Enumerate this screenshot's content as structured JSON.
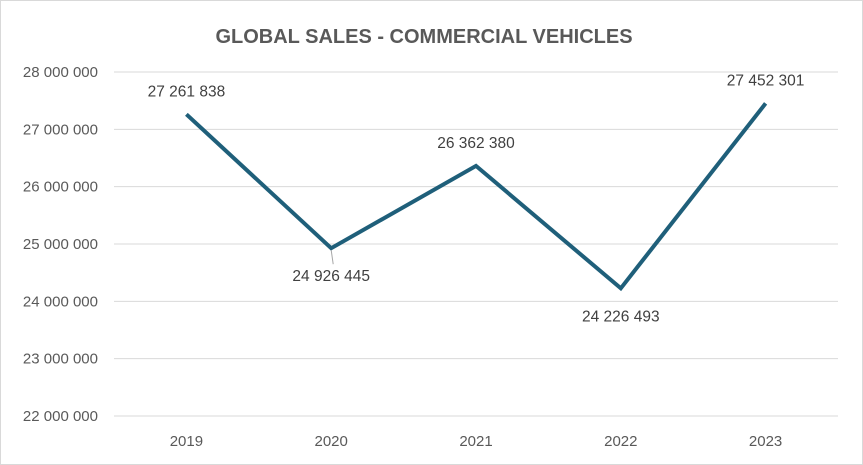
{
  "chart_data": {
    "type": "line",
    "title": "GLOBAL SALES - COMMERCIAL VEHICLES",
    "categories": [
      "2019",
      "2020",
      "2021",
      "2022",
      "2023"
    ],
    "series": [
      {
        "values": [
          27261838,
          24926445,
          26362380,
          24226493,
          27452301
        ]
      }
    ],
    "data_labels": [
      "27 261 838",
      "24 926 445",
      "26 362 380",
      "24 226 493",
      "27 452 301"
    ],
    "ylim": [
      22000000,
      28000000
    ],
    "y_ticks": [
      22000000,
      23000000,
      24000000,
      25000000,
      26000000,
      27000000,
      28000000
    ],
    "y_tick_labels": [
      "22 000 000",
      "23 000 000",
      "24 000 000",
      "25 000 000",
      "26 000 000",
      "27 000 000",
      "28 000 000"
    ],
    "grid": true,
    "legend": "none",
    "colors": {
      "series": "#1f5f7a",
      "grid": "#d9d9d9",
      "text": "#595959"
    }
  }
}
